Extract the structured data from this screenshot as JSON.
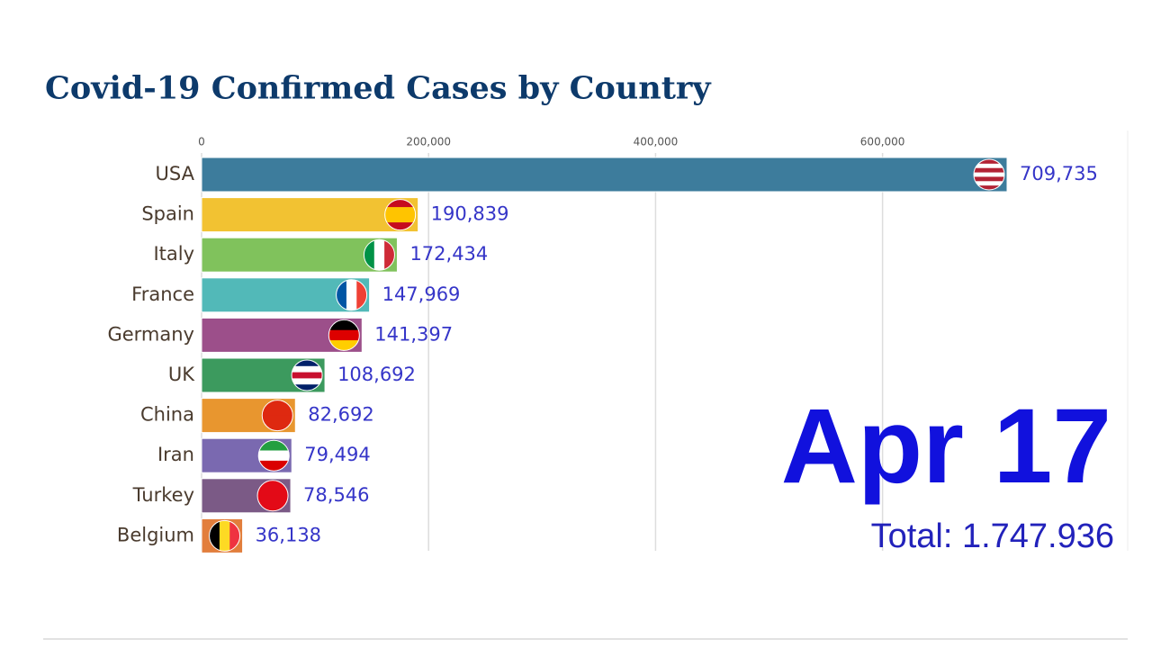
{
  "chart_data": {
    "type": "bar",
    "orientation": "horizontal",
    "title": "Covid-19 Confirmed Cases by Country",
    "categories": [
      "USA",
      "Spain",
      "Italy",
      "France",
      "Germany",
      "UK",
      "China",
      "Iran",
      "Turkey",
      "Belgium"
    ],
    "values": [
      709735,
      190839,
      172434,
      147969,
      141397,
      108692,
      82692,
      79494,
      78546,
      36138
    ],
    "value_labels": [
      "709,735",
      "190,839",
      "172,434",
      "147,969",
      "141,397",
      "108,692",
      "82,692",
      "79,494",
      "78,546",
      "36,138"
    ],
    "colors": [
      "#3d7c9c",
      "#f2c232",
      "#80c25c",
      "#52b9b8",
      "#9c4f8a",
      "#3c9a5e",
      "#e8962f",
      "#7a69b0",
      "#7b5a86",
      "#e27e3c"
    ],
    "xlim": [
      0,
      816000
    ],
    "xticks": [
      0,
      {
        "value": 200000,
        "label": "200,000"
      },
      {
        "value": 400000,
        "label": "400,000"
      },
      {
        "value": 600000,
        "label": "600,000"
      }
    ],
    "grid": true,
    "annotations": [
      "Apr 17",
      "Total: 1.747.936"
    ]
  }
}
